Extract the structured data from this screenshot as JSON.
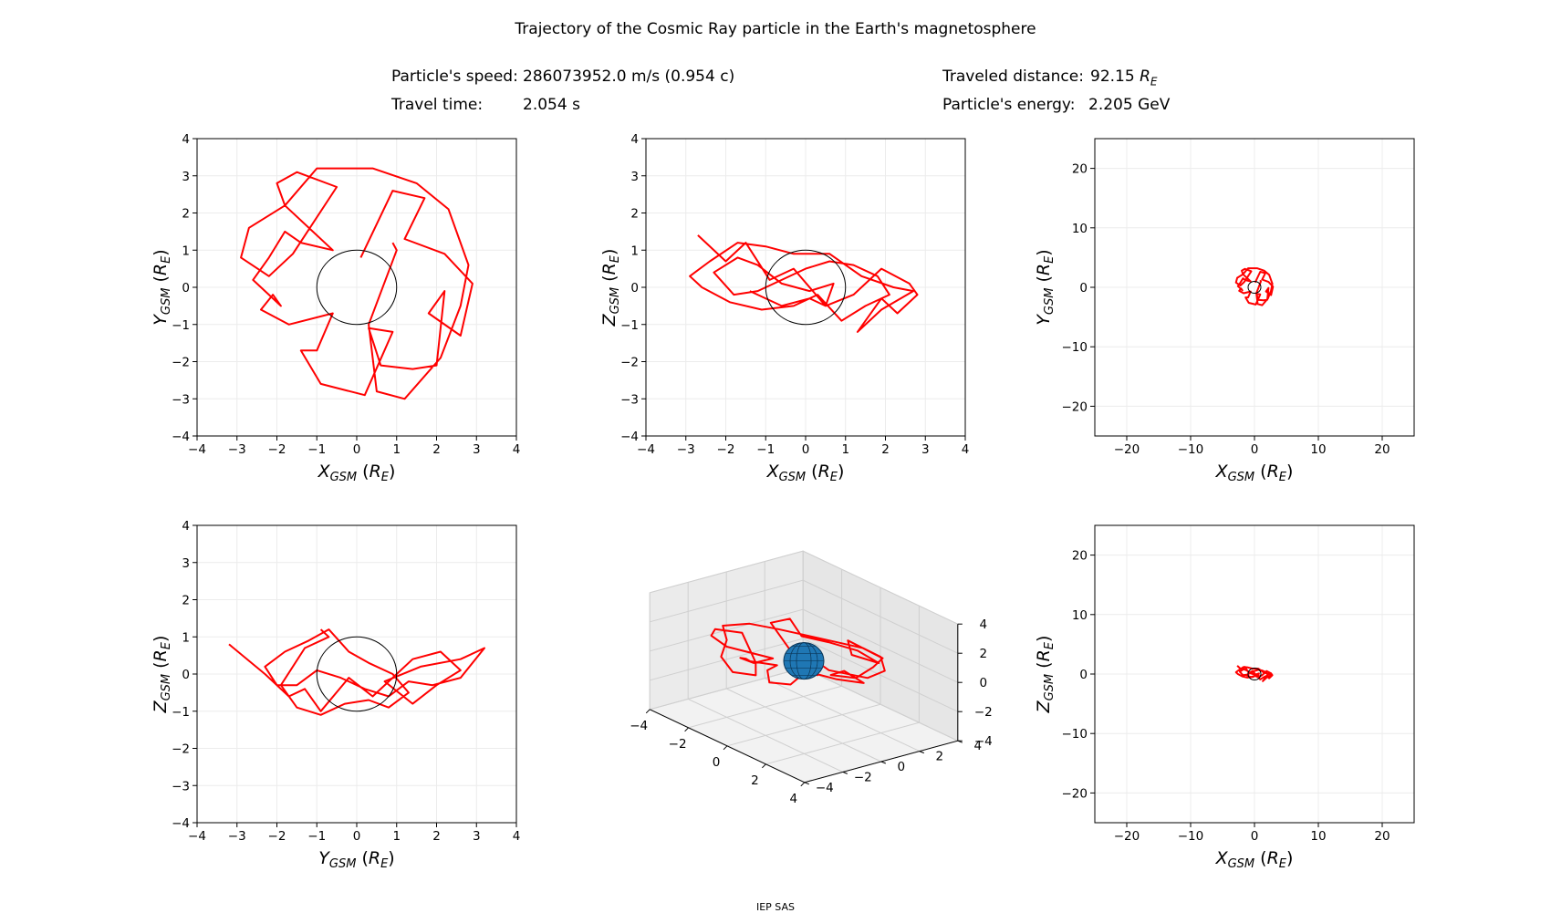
{
  "figure": {
    "title": "Trajectory of the Cosmic Ray particle in the Earth's magnetosphere",
    "speed_label": "Particle's speed:",
    "speed_value": "286073952.0 m/s (0.954 c)",
    "distance_label": "Traveled distance:",
    "distance_value": "92.15",
    "distance_unit": "R",
    "distance_unit_sub": "E",
    "time_label": "Travel time:",
    "time_value": "2.054 s",
    "energy_label": "Particle's energy:",
    "energy_value": "2.205 GeV",
    "footer": "IEP SAS"
  },
  "colors": {
    "trajectory": "#ff0000",
    "earth_3d": "#1f77b4",
    "grid": "#ececec",
    "axes": "#000000"
  },
  "chart_data": [
    {
      "type": "line",
      "name": "xy-zoom",
      "xlabel": "X",
      "xlabel_sub": "GSM",
      "ylabel": "Y",
      "ylabel_sub": "GSM",
      "unit": "R",
      "unit_sub": "E",
      "xlim": [
        -4,
        4
      ],
      "ylim": [
        -4,
        4
      ],
      "xticks": [
        -4,
        -3,
        -2,
        -1,
        0,
        1,
        2,
        3,
        4
      ],
      "yticks": [
        -4,
        -3,
        -2,
        -1,
        0,
        1,
        2,
        3,
        4
      ],
      "earth_circle_radius": 1,
      "grid": true,
      "trajectory_x": [
        0.1,
        0.9,
        1.7,
        1.2,
        2.2,
        2.9,
        2.6,
        1.8,
        2.2,
        2.0,
        1.4,
        0.6,
        0.3,
        0.9,
        0.2,
        -0.9,
        -1.4,
        -1.0,
        -0.6,
        -1.7,
        -2.4,
        -2.1,
        -1.9,
        -2.6,
        -2.2,
        -1.8,
        -1.4,
        -0.6,
        -1.8,
        -2.0,
        -1.5,
        -0.5,
        -1.6,
        -2.2,
        -2.9,
        -2.7,
        -1.8,
        -1.0,
        0.4,
        1.5,
        2.3,
        2.8,
        2.6,
        2.1,
        1.2,
        0.5,
        0.3,
        1.0,
        0.9
      ],
      "trajectory_y": [
        0.8,
        2.6,
        2.4,
        1.3,
        0.9,
        0.1,
        -1.3,
        -0.7,
        -0.1,
        -2.1,
        -2.2,
        -2.1,
        -1.1,
        -1.2,
        -2.9,
        -2.6,
        -1.7,
        -1.7,
        -0.7,
        -1.0,
        -0.6,
        -0.2,
        -0.5,
        0.2,
        0.8,
        1.5,
        1.2,
        1.0,
        2.2,
        2.8,
        3.1,
        2.7,
        0.9,
        0.3,
        0.8,
        1.6,
        2.2,
        3.2,
        3.2,
        2.8,
        2.1,
        0.6,
        -0.5,
        -1.9,
        -3.0,
        -2.8,
        -1.0,
        1.0,
        1.2
      ]
    },
    {
      "type": "line",
      "name": "xz-zoom",
      "xlabel": "X",
      "xlabel_sub": "GSM",
      "ylabel": "Z",
      "ylabel_sub": "GSM",
      "unit": "R",
      "unit_sub": "E",
      "xlim": [
        -4,
        4
      ],
      "ylim": [
        -4,
        4
      ],
      "xticks": [
        -4,
        -3,
        -2,
        -1,
        0,
        1,
        2,
        3,
        4
      ],
      "yticks": [
        -4,
        -3,
        -2,
        -1,
        0,
        1,
        2,
        3,
        4
      ],
      "earth_circle_radius": 1,
      "grid": true,
      "trajectory_x": [
        -2.7,
        -2.0,
        -1.5,
        -0.9,
        -0.3,
        0.5,
        1.2,
        1.9,
        2.6,
        2.8,
        2.3,
        1.9,
        1.5,
        1.3,
        1.9,
        2.7,
        2.2,
        1.4,
        0.6,
        -0.3,
        -1.0,
        -1.7,
        -2.4,
        -2.9,
        -2.6,
        -1.9,
        -1.1,
        -0.3,
        0.3,
        0.9,
        1.5,
        2.1,
        1.8,
        1.2,
        0.6,
        0.0,
        -0.6,
        -1.2,
        -1.8,
        -2.3,
        -1.7,
        -1.2,
        -0.6,
        0.1,
        0.7,
        0.5,
        0.1,
        -0.6,
        -1.4
      ],
      "trajectory_y": [
        1.4,
        0.7,
        1.2,
        0.2,
        0.5,
        -0.5,
        -0.2,
        0.5,
        0.1,
        -0.2,
        -0.7,
        -0.3,
        -0.9,
        -1.2,
        -0.6,
        -0.1,
        0.0,
        0.3,
        0.9,
        0.9,
        1.1,
        1.2,
        0.7,
        0.3,
        0.0,
        -0.4,
        -0.6,
        -0.5,
        -0.2,
        -0.9,
        -0.5,
        -0.2,
        0.3,
        0.6,
        0.7,
        0.5,
        0.2,
        -0.1,
        -0.2,
        0.4,
        0.8,
        0.6,
        0.1,
        -0.1,
        0.1,
        -0.5,
        -0.3,
        -0.5,
        -0.1
      ]
    },
    {
      "type": "line",
      "name": "xy-full",
      "xlabel": "X",
      "xlabel_sub": "GSM",
      "ylabel": "Y",
      "ylabel_sub": "GSM",
      "unit": "R",
      "unit_sub": "E",
      "xlim": [
        -25,
        25
      ],
      "ylim": [
        -25,
        25
      ],
      "xticks": [
        -20,
        -10,
        0,
        10,
        20
      ],
      "yticks": [
        -20,
        -10,
        0,
        10,
        20
      ],
      "earth_circle_radius": 1,
      "grid": true,
      "trajectory_source": "xy-zoom"
    },
    {
      "type": "line",
      "name": "yz-zoom",
      "xlabel": "Y",
      "xlabel_sub": "GSM",
      "ylabel": "Z",
      "ylabel_sub": "GSM",
      "unit": "R",
      "unit_sub": "E",
      "xlim": [
        -4,
        4
      ],
      "ylim": [
        -4,
        4
      ],
      "xticks": [
        -4,
        -3,
        -2,
        -1,
        0,
        1,
        2,
        3,
        4
      ],
      "yticks": [
        -4,
        -3,
        -2,
        -1,
        0,
        1,
        2,
        3,
        4
      ],
      "earth_circle_radius": 1,
      "grid": true,
      "trajectory_x": [
        -3.2,
        -2.3,
        -1.7,
        -1.3,
        -0.9,
        -0.2,
        0.4,
        0.9,
        1.4,
        2.1,
        2.6,
        2.0,
        1.4,
        0.7,
        1.6,
        2.6,
        3.2,
        2.6,
        1.9,
        1.3,
        0.8,
        0.2,
        -0.4,
        -1.0,
        -1.5,
        -2.0,
        -2.3,
        -1.8,
        -1.2,
        -0.7,
        -0.2,
        0.3,
        0.9,
        1.3,
        0.8,
        0.3,
        -0.3,
        -0.9,
        -1.5,
        -1.9,
        -1.3,
        -0.7,
        -0.9
      ],
      "trajectory_y": [
        0.8,
        0.0,
        -0.6,
        -0.4,
        -1.0,
        -0.1,
        -0.6,
        -0.1,
        0.4,
        0.6,
        0.1,
        -0.3,
        -0.8,
        -0.2,
        0.2,
        0.4,
        0.7,
        -0.1,
        -0.3,
        -0.2,
        -0.6,
        -0.4,
        -0.1,
        0.1,
        -0.3,
        -0.3,
        0.2,
        0.6,
        0.9,
        1.2,
        0.6,
        0.3,
        0.0,
        -0.5,
        -0.9,
        -0.7,
        -0.8,
        -1.1,
        -0.9,
        -0.3,
        0.7,
        1.0,
        1.2
      ]
    },
    {
      "type": "line",
      "name": "3d-view",
      "xlim": [
        -4,
        4
      ],
      "ylim": [
        -4,
        4
      ],
      "zlim": [
        -4,
        4
      ],
      "xticks": [
        -4,
        -2,
        0,
        2,
        4
      ],
      "yticks": [
        -4,
        -2,
        0,
        2,
        4
      ],
      "zticks": [
        -4,
        -2,
        0,
        2,
        4
      ],
      "grid": true,
      "trajectory_source": "xy-zoom"
    },
    {
      "type": "line",
      "name": "xz-full",
      "xlabel": "X",
      "xlabel_sub": "GSM",
      "ylabel": "Z",
      "ylabel_sub": "GSM",
      "unit": "R",
      "unit_sub": "E",
      "xlim": [
        -25,
        25
      ],
      "ylim": [
        -25,
        25
      ],
      "xticks": [
        -20,
        -10,
        0,
        10,
        20
      ],
      "yticks": [
        -20,
        -10,
        0,
        10,
        20
      ],
      "earth_circle_radius": 1,
      "grid": true,
      "trajectory_source": "xz-zoom"
    }
  ]
}
